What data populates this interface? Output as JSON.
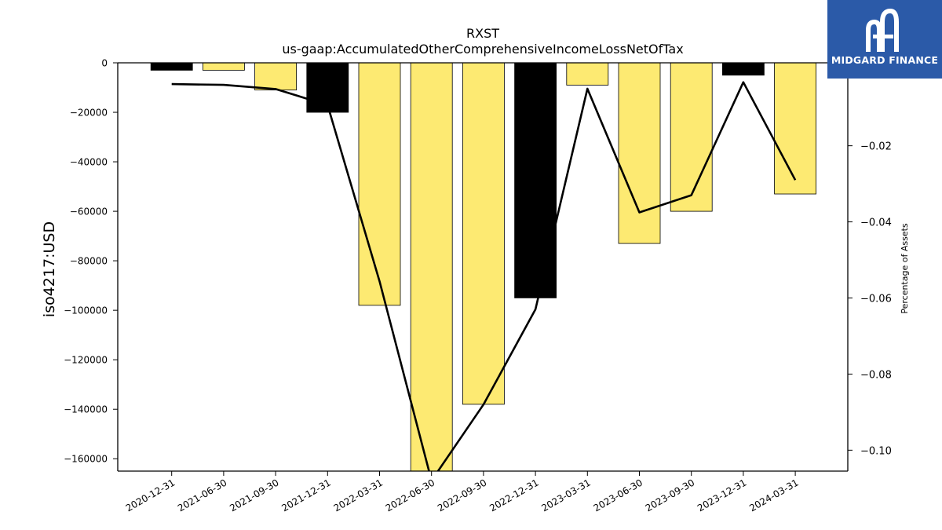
{
  "brand": {
    "name": "MIDGARD FINANCE",
    "bg_color": "#2b5aa8"
  },
  "chart_data": {
    "type": "bar",
    "title": "RXST",
    "subtitle": "us-gaap:AccumulatedOtherComprehensiveIncomeLossNetOfTax",
    "ylabel": "iso4217:USD",
    "y2label": "Percentage of Assets",
    "categories": [
      "2020-12-31",
      "2021-06-30",
      "2021-09-30",
      "2021-12-31",
      "2022-03-31",
      "2022-06-30",
      "2022-09-30",
      "2022-12-31",
      "2023-03-31",
      "2023-06-30",
      "2023-09-30",
      "2023-12-31",
      "2024-03-31"
    ],
    "series": [
      {
        "type": "bar",
        "values": [
          -3000,
          -3000,
          -11000,
          -20000,
          -98000,
          -165000,
          -138000,
          -95000,
          -9000,
          -73000,
          -60000,
          -5000,
          -53000
        ],
        "colors": [
          "#000000",
          "#fdea72",
          "#fdea72",
          "#000000",
          "#fdea72",
          "#fdea72",
          "#fdea72",
          "#000000",
          "#fdea72",
          "#fdea72",
          "#fdea72",
          "#000000",
          "#fdea72"
        ]
      },
      {
        "type": "line",
        "axis": "right",
        "color": "#000000",
        "values": [
          -0.0038,
          -0.004,
          -0.0051,
          -0.0093,
          -0.0556,
          -0.108,
          -0.088,
          -0.063,
          -0.005,
          -0.0375,
          -0.033,
          -0.0033,
          -0.029
        ]
      }
    ],
    "ylim": [
      -165000,
      0
    ],
    "y2lim": [
      -0.1055,
      0.0018
    ],
    "yticks": [
      0,
      -20000,
      -40000,
      -60000,
      -80000,
      -100000,
      -120000,
      -140000,
      -160000
    ],
    "y2ticks": [
      -0.02,
      -0.04,
      -0.06,
      -0.08,
      -0.1
    ],
    "ytick_labels": [
      "0",
      "−20000",
      "−40000",
      "−60000",
      "−80000",
      "−100000",
      "−120000",
      "−140000",
      "−160000"
    ],
    "y2tick_labels": [
      "−0.02",
      "−0.04",
      "−0.06",
      "−0.08",
      "−0.10"
    ],
    "grid": false,
    "legend": "none"
  }
}
